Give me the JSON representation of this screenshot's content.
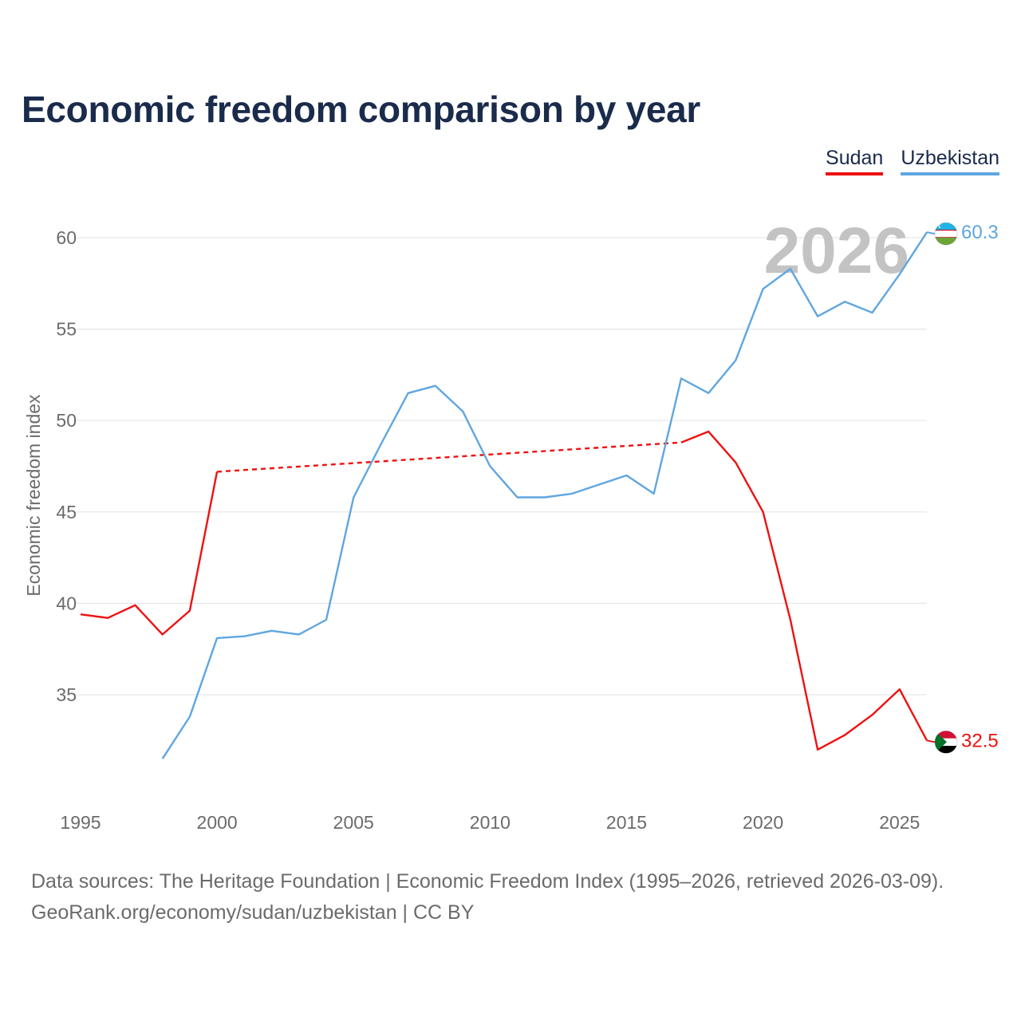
{
  "title": "Economic freedom comparison by year",
  "legend": [
    {
      "label": "Sudan",
      "color": "#ee1111"
    },
    {
      "label": "Uzbekistan",
      "color": "#5fa6e0"
    }
  ],
  "watermark_year": "2026",
  "source": {
    "line1": "Data sources: The Heritage Foundation | Economic Freedom Index (1995–2026, retrieved 2026-03-09).",
    "line2": "GeoRank.org/economy/sudan/uzbekistan | CC BY"
  },
  "chart_data": {
    "type": "line",
    "title": "Economic freedom comparison by year",
    "xlabel": "",
    "ylabel": "Economic freedom index",
    "xlim": [
      1995,
      2026
    ],
    "ylim": [
      30,
      62
    ],
    "x_ticks": [
      1995,
      2000,
      2005,
      2010,
      2015,
      2020,
      2025
    ],
    "y_ticks": [
      35,
      40,
      45,
      50,
      55,
      60
    ],
    "grid": true,
    "legend_position": "top-right",
    "series": [
      {
        "name": "Sudan",
        "color": "#ee1111",
        "points": [
          [
            1995,
            39.4
          ],
          [
            1996,
            39.2
          ],
          [
            1997,
            39.9
          ],
          [
            1998,
            38.3
          ],
          [
            1999,
            39.6
          ],
          [
            2000,
            47.2
          ],
          [
            2017,
            48.8
          ],
          [
            2018,
            49.4
          ],
          [
            2019,
            47.7
          ],
          [
            2020,
            45.0
          ],
          [
            2021,
            39.1
          ],
          [
            2022,
            32.0
          ],
          [
            2023,
            32.8
          ],
          [
            2024,
            33.9
          ],
          [
            2025,
            35.3
          ],
          [
            2026,
            32.5
          ]
        ],
        "dashed_segments": [
          [
            2000,
            2017
          ]
        ],
        "end_label": "32.5"
      },
      {
        "name": "Uzbekistan",
        "color": "#5fa6e0",
        "points": [
          [
            1998,
            31.5
          ],
          [
            1999,
            33.8
          ],
          [
            2000,
            38.1
          ],
          [
            2001,
            38.2
          ],
          [
            2002,
            38.5
          ],
          [
            2003,
            38.3
          ],
          [
            2004,
            39.1
          ],
          [
            2005,
            45.8
          ],
          [
            2006,
            48.7
          ],
          [
            2007,
            51.5
          ],
          [
            2008,
            51.9
          ],
          [
            2009,
            50.5
          ],
          [
            2010,
            47.5
          ],
          [
            2011,
            45.8
          ],
          [
            2012,
            45.8
          ],
          [
            2013,
            46.0
          ],
          [
            2014,
            46.5
          ],
          [
            2015,
            47.0
          ],
          [
            2016,
            46.0
          ],
          [
            2017,
            52.3
          ],
          [
            2018,
            51.5
          ],
          [
            2019,
            53.3
          ],
          [
            2020,
            57.2
          ],
          [
            2021,
            58.3
          ],
          [
            2022,
            55.7
          ],
          [
            2023,
            56.5
          ],
          [
            2024,
            55.9
          ],
          [
            2025,
            58.0
          ],
          [
            2026,
            60.3
          ]
        ],
        "dashed_segments": [],
        "end_label": "60.3"
      }
    ]
  }
}
